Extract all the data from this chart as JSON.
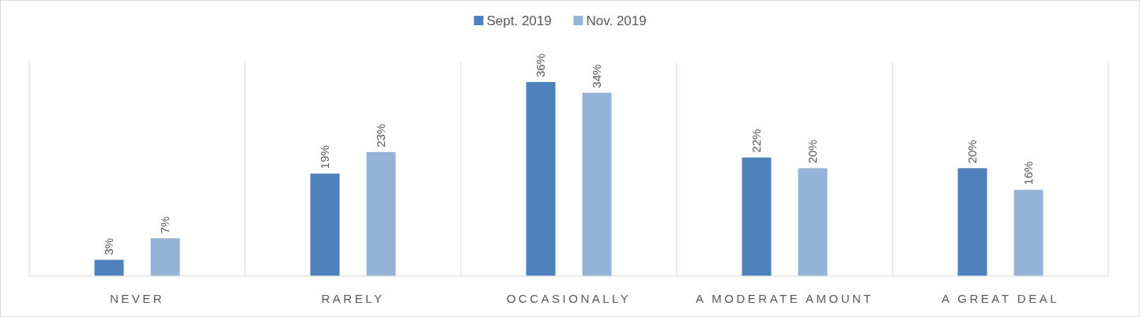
{
  "chart_data": {
    "type": "bar",
    "categories": [
      "NEVER",
      "RARELY",
      "OCCASIONALLY",
      "A MODERATE AMOUNT",
      "A GREAT DEAL"
    ],
    "series": [
      {
        "name": "Sept. 2019",
        "color": "#4f81bd",
        "values": [
          3,
          19,
          36,
          22,
          20
        ],
        "value_labels": [
          "3%",
          "19%",
          "36%",
          "22%",
          "20%"
        ]
      },
      {
        "name": "Nov. 2019",
        "color": "#95b3d7",
        "values": [
          7,
          23,
          34,
          20,
          16
        ],
        "value_labels": [
          "7%",
          "23%",
          "34%",
          "20%",
          "16%"
        ]
      }
    ],
    "legend": "top",
    "grid": "x"
  }
}
